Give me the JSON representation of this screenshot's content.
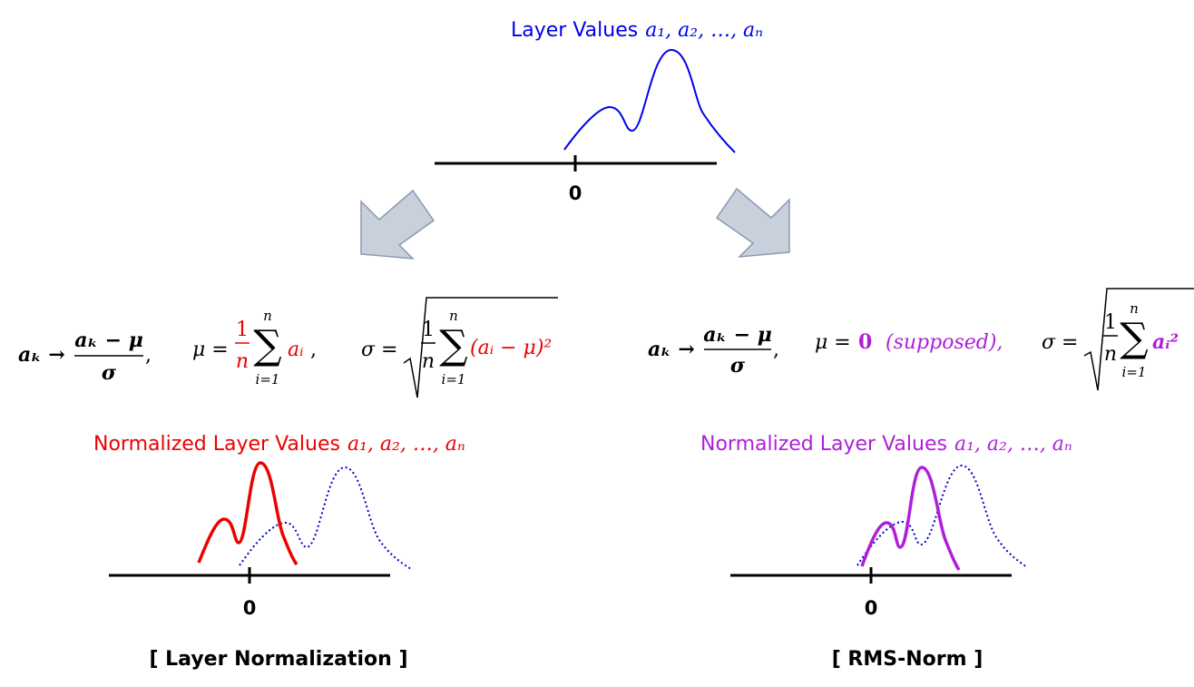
{
  "top": {
    "title": "Layer Values",
    "variables": "a₁, a₂, …, aₙ",
    "axis_label": "0"
  },
  "layer_norm": {
    "formula": {
      "mapping": "aₖ →",
      "numerator": "aₖ − μ",
      "denominator": "σ",
      "comma": ",",
      "mu": {
        "lhs": "μ =",
        "frac_num": "1",
        "frac_den": "n",
        "sum": "∑",
        "sum_top": "n",
        "sum_bottom": "i=1",
        "term": "aᵢ",
        "comma": ","
      },
      "sigma": {
        "lhs": "σ =",
        "frac_num": "1",
        "frac_den": "n",
        "sum": "∑",
        "sum_top": "n",
        "sum_bottom": "i=1",
        "term": "(aᵢ − μ)²"
      }
    },
    "title": "Normalized Layer Values",
    "variables": "a₁, a₂, …, aₙ",
    "axis_label": "0",
    "caption": "[ Layer Normalization ]"
  },
  "rms_norm": {
    "formula": {
      "mapping": "aₖ →",
      "numerator": "aₖ − μ",
      "denominator": "σ",
      "comma": ",",
      "mu": {
        "lhs": "μ =",
        "value": "0",
        "note": "(supposed),"
      },
      "sigma": {
        "lhs": "σ =",
        "frac_num": "1",
        "frac_den": "n",
        "sum": "∑",
        "sum_top": "n",
        "sum_bottom": "i=1",
        "term": "aᵢ²"
      }
    },
    "title": "Normalized Layer Values",
    "variables": "a₁, a₂, …, aₙ",
    "axis_label": "0",
    "caption": "[ RMS-Norm ]"
  }
}
